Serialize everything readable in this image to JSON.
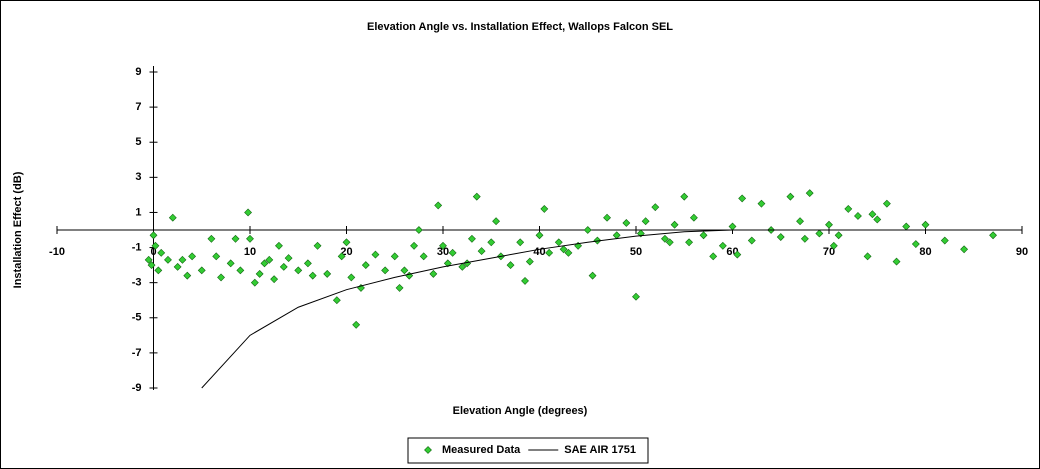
{
  "chart_data": {
    "type": "scatter",
    "title": "Elevation Angle vs. Installation Effect, Wallops Falcon SEL",
    "x_label": "Elevation Angle (degrees)",
    "y_label": "Installation Effect (dB)",
    "xlim": [
      -10,
      90
    ],
    "xticks": [
      -10,
      0,
      10,
      20,
      30,
      40,
      50,
      60,
      70,
      80,
      90
    ],
    "ylim": [
      -9,
      9
    ],
    "yticks": [
      -9,
      -7,
      -5,
      -3,
      -1,
      1,
      3,
      5,
      7,
      9
    ],
    "series": [
      {
        "name": "Measured Data",
        "color": "#33cc33",
        "marker": "diamond",
        "x": [
          -0.5,
          -0.2,
          0,
          0.2,
          0.5,
          0.8,
          1.5,
          2,
          2.5,
          3,
          3.5,
          4,
          5,
          6,
          6.5,
          7,
          8,
          8.5,
          9,
          9.8,
          10,
          10.5,
          11,
          11.5,
          12,
          12.5,
          13,
          13.5,
          14,
          15,
          16,
          16.5,
          17,
          18,
          19,
          19.5,
          20,
          20.5,
          21,
          21.5,
          22,
          23,
          24,
          25,
          25.5,
          26,
          27,
          27.5,
          28,
          29,
          29.5,
          30,
          30.5,
          31,
          32,
          33,
          33.5,
          34,
          35,
          35.5,
          36,
          37,
          38,
          39,
          40,
          40.5,
          41,
          42,
          43,
          44,
          45,
          46,
          47,
          48,
          49,
          50,
          50.5,
          51,
          52,
          53,
          54,
          55,
          55.5,
          56,
          57,
          58,
          59,
          60,
          61,
          62,
          63,
          64,
          65,
          66,
          67,
          68,
          69,
          70,
          70.5,
          71,
          72,
          73,
          74,
          75,
          76,
          77,
          78,
          79,
          80,
          82,
          84,
          87,
          45.5,
          38.5,
          26.5,
          32.5,
          42.5,
          53.5,
          60.5,
          74.5,
          67.5
        ],
        "values": [
          -1.7,
          -2,
          -0.3,
          -0.9,
          -2.3,
          -1.3,
          -1.7,
          0.7,
          -2.1,
          -1.7,
          -2.6,
          -1.5,
          -2.3,
          -0.5,
          -1.5,
          -2.7,
          -1.9,
          -0.5,
          -2.3,
          1,
          -0.5,
          -3,
          -2.5,
          -1.9,
          -1.7,
          -2.8,
          -0.9,
          -2.1,
          -1.6,
          -2.3,
          -1.9,
          -2.6,
          -0.9,
          -2.5,
          -4,
          -1.5,
          -0.7,
          -2.7,
          -5.4,
          -3.3,
          -2,
          -1.4,
          -2.3,
          -1.5,
          -3.3,
          -2.3,
          -0.9,
          0,
          -1.5,
          -2.5,
          1.4,
          -0.9,
          -1.9,
          -1.3,
          -2.1,
          -0.5,
          1.9,
          -1.2,
          -0.7,
          0.5,
          -1.5,
          -2,
          -0.7,
          -1.8,
          -0.3,
          1.2,
          -1.3,
          -0.7,
          -1.3,
          -0.9,
          0,
          -0.6,
          0.7,
          -0.3,
          0.4,
          -3.8,
          -0.2,
          0.5,
          1.3,
          -0.5,
          0.3,
          1.9,
          -0.7,
          0.7,
          -0.3,
          -1.5,
          -0.9,
          0.2,
          1.8,
          -0.6,
          1.5,
          0,
          -0.4,
          1.9,
          0.5,
          2.1,
          -0.2,
          0.3,
          -0.9,
          -0.3,
          1.2,
          0.8,
          -1.5,
          0.6,
          1.5,
          -1.8,
          0.2,
          -0.8,
          0.3,
          -0.6,
          -1.1,
          -0.3,
          -2.6,
          -2.9,
          -2.6,
          -1.9,
          -1.1,
          -0.7,
          -1.4,
          0.9,
          -0.5
        ]
      },
      {
        "name": "SAE AIR 1751",
        "color": "#000000",
        "marker": "line",
        "x": [
          5,
          10,
          15,
          20,
          25,
          30,
          35,
          40,
          45,
          50,
          55,
          60,
          65,
          70,
          75,
          80
        ],
        "values": [
          -9,
          -6,
          -4.4,
          -3.4,
          -2.7,
          -2.1,
          -1.6,
          -1.1,
          -0.7,
          -0.35,
          -0.1,
          0,
          0,
          0,
          0,
          0
        ]
      }
    ]
  }
}
